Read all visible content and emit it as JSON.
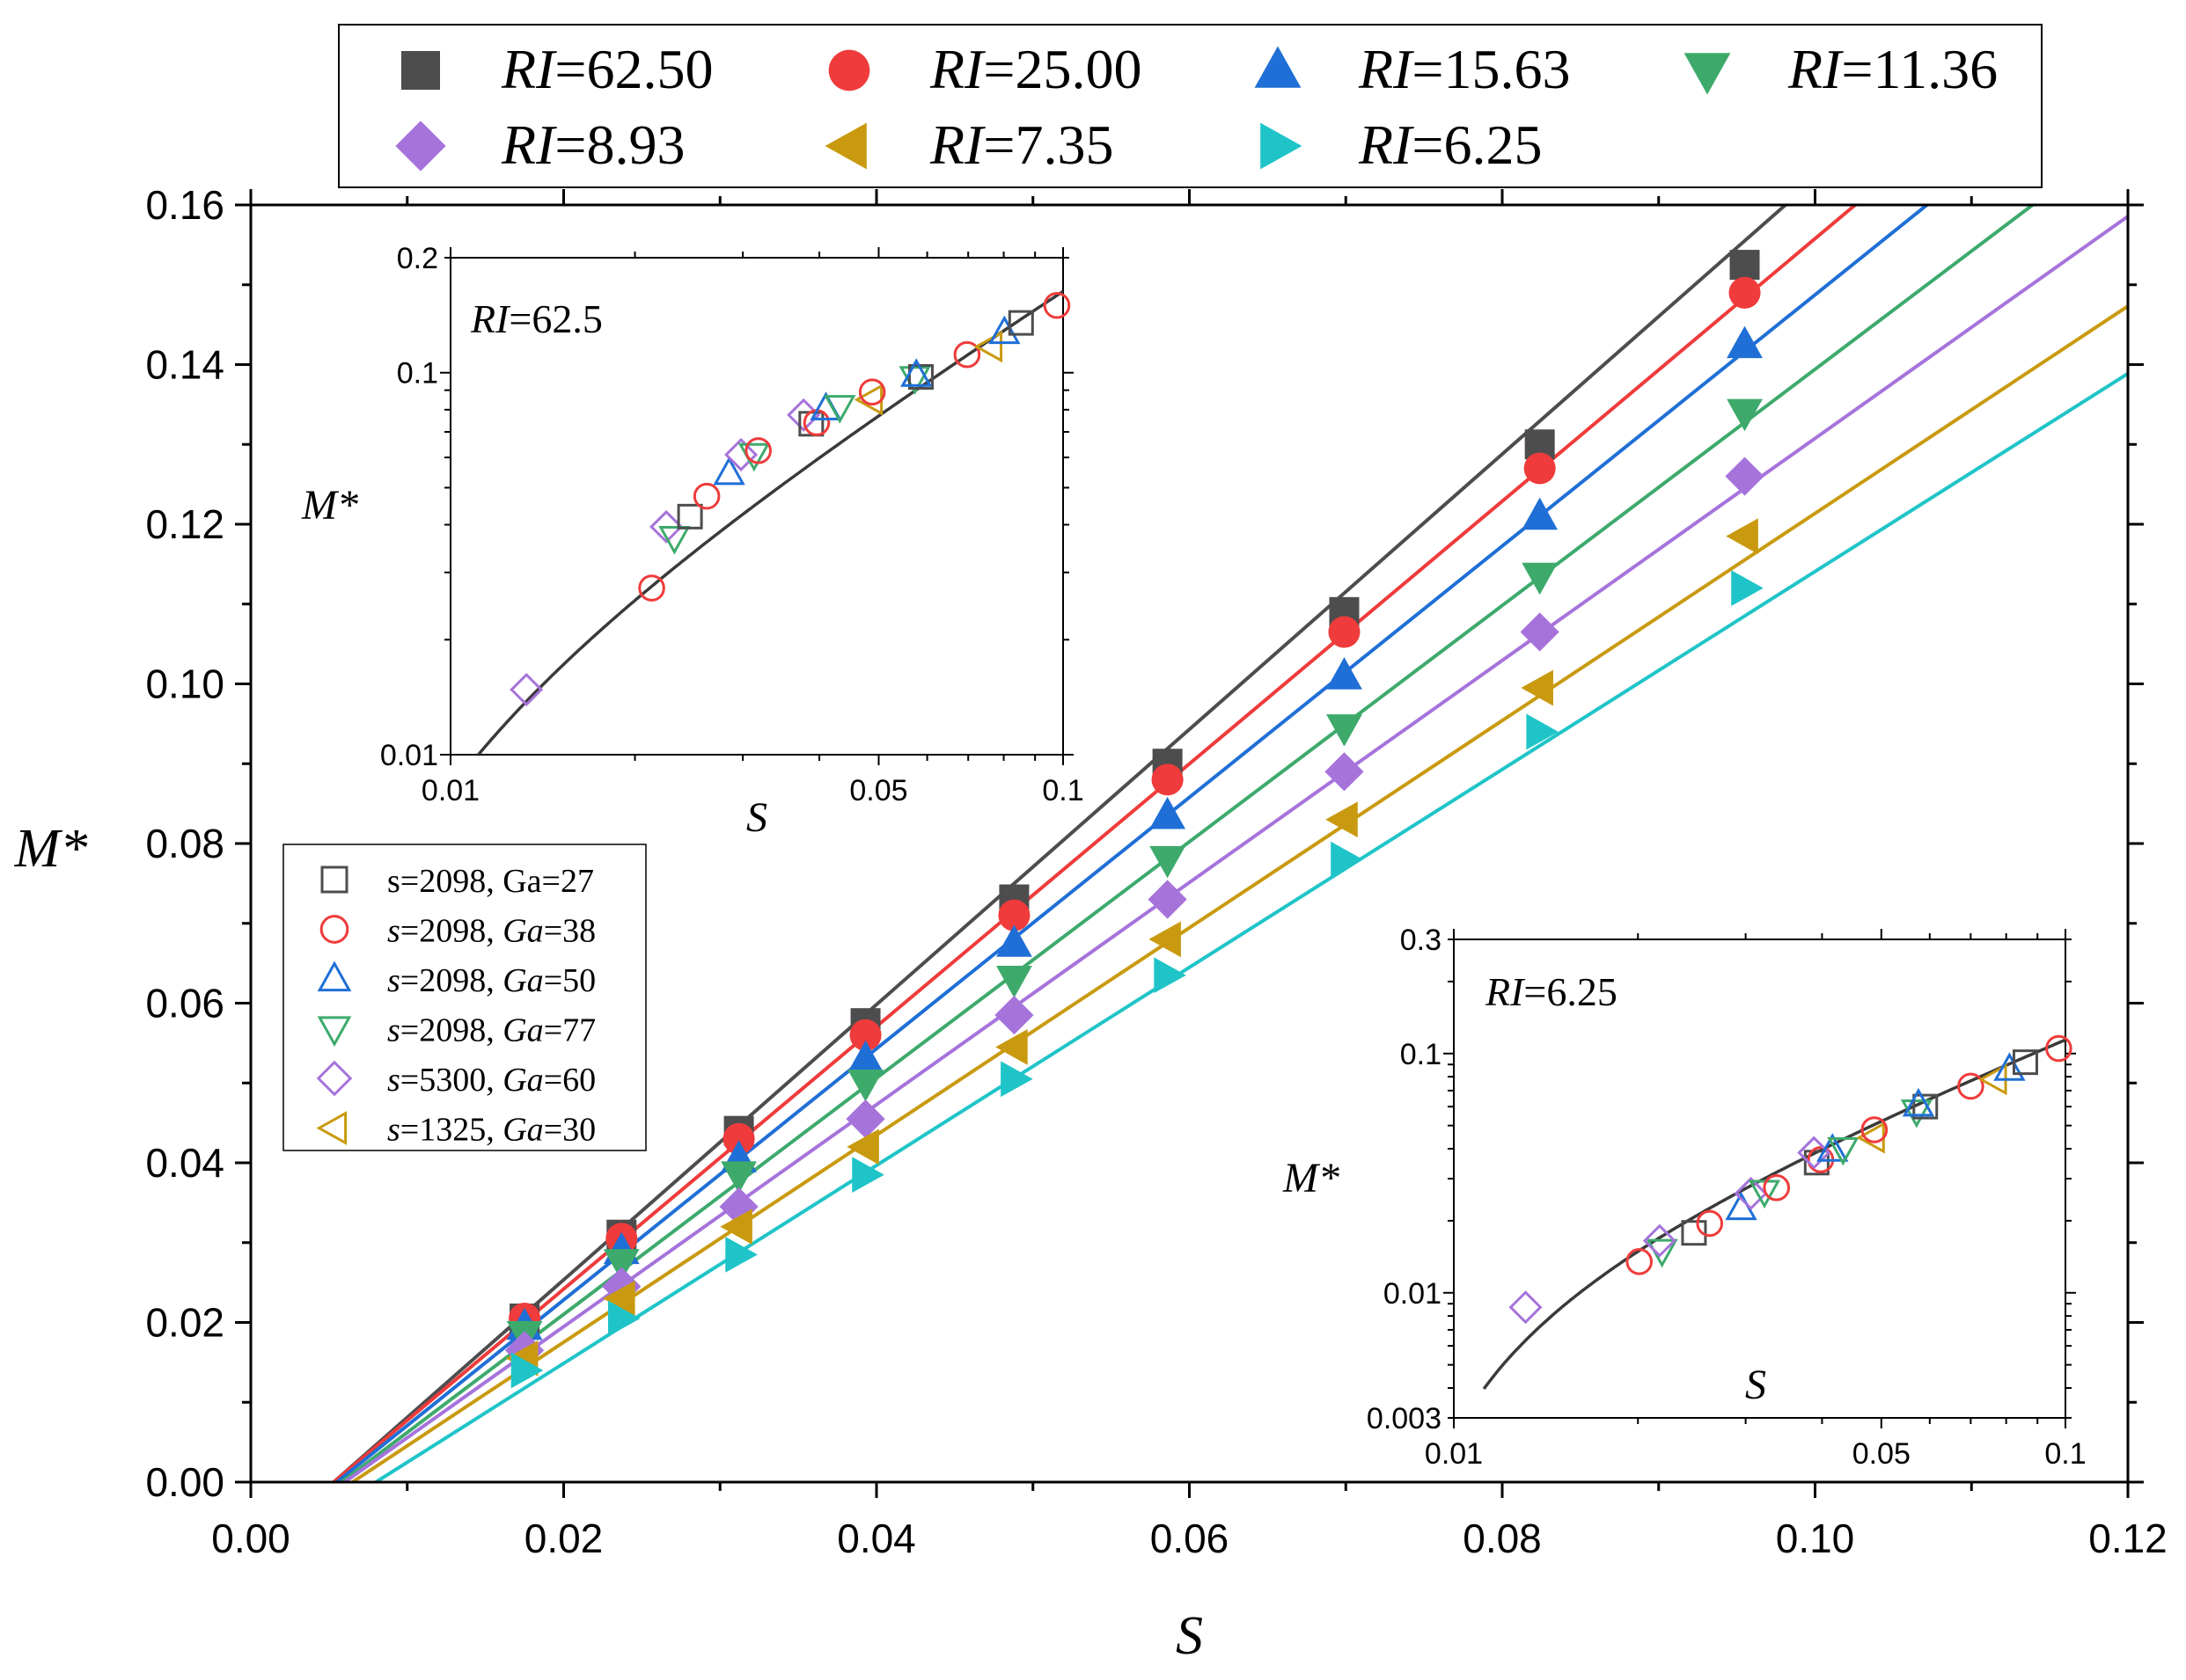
{
  "chart_data": {
    "type": "scatter",
    "x": [
      0.0175,
      0.0237,
      0.0312,
      0.0393,
      0.0488,
      0.0586,
      0.0699,
      0.0824,
      0.0955
    ],
    "xlabel": "S",
    "ylabel": "M*",
    "xlim": [
      0,
      0.12
    ],
    "ylim": [
      0,
      0.16
    ],
    "xticks": [
      "0.00",
      "0.02",
      "0.04",
      "0.06",
      "0.08",
      "0.10",
      "0.12"
    ],
    "yticks": [
      "0.00",
      "0.02",
      "0.04",
      "0.06",
      "0.08",
      "0.10",
      "0.12",
      "0.14",
      "0.16"
    ],
    "legend": "top-outside",
    "series": [
      {
        "name": "RI=62.50",
        "ri_value": "62.50",
        "color": "#4d4d4d",
        "marker": "square",
        "values": [
          0.0205,
          0.031,
          0.044,
          0.0575,
          0.073,
          0.09,
          0.109,
          0.13,
          0.1525
        ],
        "fit_slope": 1.724,
        "fit_x0": 0.0053
      },
      {
        "name": "RI=25.00",
        "ri_value": "25.00",
        "color": "#ef3b3b",
        "marker": "circle",
        "values": [
          0.0205,
          0.0305,
          0.043,
          0.056,
          0.071,
          0.088,
          0.1065,
          0.127,
          0.149
        ],
        "fit_slope": 1.645,
        "fit_x0": 0.0053
      },
      {
        "name": "RI=15.63",
        "ri_value": "15.63",
        "color": "#1f6fd6",
        "marker": "triangle-up",
        "values": [
          0.0195,
          0.029,
          0.0405,
          0.053,
          0.0675,
          0.0835,
          0.101,
          0.121,
          0.1425
        ],
        "fit_slope": 1.574,
        "fit_x0": 0.0055
      },
      {
        "name": "RI=11.36",
        "ri_value": "11.36",
        "color": "#3daa6c",
        "marker": "triangle-down",
        "values": [
          0.0185,
          0.0275,
          0.0385,
          0.05,
          0.063,
          0.078,
          0.0945,
          0.1135,
          0.134
        ],
        "fit_slope": 1.48,
        "fit_x0": 0.0058
      },
      {
        "name": "RI=8.93",
        "ri_value": "8.93",
        "color": "#a673db",
        "marker": "diamond",
        "values": [
          0.0165,
          0.0245,
          0.0345,
          0.0455,
          0.0585,
          0.073,
          0.089,
          0.1065,
          0.126
        ],
        "fit_slope": 1.391,
        "fit_x0": 0.006
      },
      {
        "name": "RI=7.35",
        "ri_value": "7.35",
        "color": "#c99a10",
        "marker": "triangle-left",
        "values": [
          0.0155,
          0.023,
          0.032,
          0.042,
          0.0545,
          0.068,
          0.083,
          0.0995,
          0.1185
        ],
        "fit_slope": 1.298,
        "fit_x0": 0.0065
      },
      {
        "name": "RI=6.25",
        "ri_value": "6.25",
        "color": "#1fc4c8",
        "marker": "triangle-right",
        "values": [
          0.014,
          0.0205,
          0.0285,
          0.0385,
          0.0505,
          0.0635,
          0.078,
          0.094,
          0.112
        ],
        "fit_slope": 1.24,
        "fit_x0": 0.008
      }
    ],
    "case_legend": [
      {
        "label": "s=2098, Ga=27",
        "s": "2098",
        "ga": "27",
        "color": "#4d4d4d",
        "marker": "square"
      },
      {
        "label": "s=2098, Ga=38",
        "s": "2098",
        "ga": "38",
        "color": "#ef3b3b",
        "marker": "circle"
      },
      {
        "label": "s=2098, Ga=50",
        "s": "2098",
        "ga": "50",
        "color": "#1f6fd6",
        "marker": "triangle-up"
      },
      {
        "label": "s=2098, Ga=77",
        "s": "2098",
        "ga": "77",
        "color": "#3daa6c",
        "marker": "triangle-down"
      },
      {
        "label": "s=5300, Ga=60",
        "s": "5300",
        "ga": "60",
        "color": "#a673db",
        "marker": "diamond"
      },
      {
        "label": "s=1325, Ga=30",
        "s": "1325",
        "ga": "30",
        "color": "#c99a10",
        "marker": "triangle-left"
      }
    ],
    "insets": [
      {
        "title": "RI=62.5",
        "ri_value": "62.5",
        "xlabel": "S",
        "ylabel": "M*",
        "xscale": "log",
        "yscale": "log",
        "xlim": [
          0.01,
          0.1
        ],
        "ylim": [
          0.01,
          0.2
        ],
        "xticks": [
          0.01,
          0.05,
          0.1
        ],
        "xtick_labels": [
          "0.01",
          "0.05",
          "0.1"
        ],
        "yticks": [
          0.01,
          0.1,
          0.2
        ],
        "ytick_labels": [
          "0.01",
          "0.1",
          "0.2"
        ],
        "fit": {
          "a": 1.724,
          "x0": 0.0053,
          "xmin": 0.0103,
          "xmax": 0.1
        },
        "points": [
          {
            "case": 4,
            "x": 0.0133,
            "y": 0.0148
          },
          {
            "case": 1,
            "x": 0.0213,
            "y": 0.0273
          },
          {
            "case": 4,
            "x": 0.0225,
            "y": 0.0395
          },
          {
            "case": 3,
            "x": 0.0232,
            "y": 0.037
          },
          {
            "case": 0,
            "x": 0.0246,
            "y": 0.042
          },
          {
            "case": 1,
            "x": 0.0262,
            "y": 0.0475
          },
          {
            "case": 2,
            "x": 0.0285,
            "y": 0.0545
          },
          {
            "case": 4,
            "x": 0.0298,
            "y": 0.061
          },
          {
            "case": 3,
            "x": 0.0313,
            "y": 0.061
          },
          {
            "case": 1,
            "x": 0.0318,
            "y": 0.0625
          },
          {
            "case": 4,
            "x": 0.0377,
            "y": 0.0775
          },
          {
            "case": 0,
            "x": 0.0388,
            "y": 0.0735
          },
          {
            "case": 1,
            "x": 0.0396,
            "y": 0.074
          },
          {
            "case": 2,
            "x": 0.041,
            "y": 0.0805
          },
          {
            "case": 3,
            "x": 0.0432,
            "y": 0.0815
          },
          {
            "case": 5,
            "x": 0.0486,
            "y": 0.085
          },
          {
            "case": 1,
            "x": 0.0488,
            "y": 0.089
          },
          {
            "case": 3,
            "x": 0.0573,
            "y": 0.097
          },
          {
            "case": 0,
            "x": 0.0586,
            "y": 0.0975
          },
          {
            "case": 2,
            "x": 0.0576,
            "y": 0.0985
          },
          {
            "case": 1,
            "x": 0.0697,
            "y": 0.1115
          },
          {
            "case": 5,
            "x": 0.0762,
            "y": 0.117
          },
          {
            "case": 2,
            "x": 0.0802,
            "y": 0.1275
          },
          {
            "case": 0,
            "x": 0.0854,
            "y": 0.135
          },
          {
            "case": 1,
            "x": 0.0977,
            "y": 0.15
          }
        ]
      },
      {
        "title": "RI=6.25",
        "ri_value": "6.25",
        "xlabel": "S",
        "ylabel": "M*",
        "xscale": "log",
        "yscale": "log",
        "xlim": [
          0.01,
          0.1
        ],
        "ylim": [
          0.003,
          0.3
        ],
        "xticks": [
          0.01,
          0.05,
          0.1
        ],
        "xtick_labels": [
          "0.01",
          "0.05",
          "0.1"
        ],
        "yticks": [
          0.003,
          0.01,
          0.1,
          0.3
        ],
        "ytick_labels": [
          "0.003",
          "0.01",
          "0.1",
          "0.3"
        ],
        "fit": {
          "a": 1.24,
          "x0": 0.008,
          "xmin": 0.0112,
          "xmax": 0.1
        },
        "points": [
          {
            "case": 4,
            "x": 0.0131,
            "y": 0.0087
          },
          {
            "case": 1,
            "x": 0.0201,
            "y": 0.0135
          },
          {
            "case": 3,
            "x": 0.0219,
            "y": 0.015
          },
          {
            "case": 4,
            "x": 0.0217,
            "y": 0.0165
          },
          {
            "case": 0,
            "x": 0.0247,
            "y": 0.0178
          },
          {
            "case": 1,
            "x": 0.0262,
            "y": 0.0195
          },
          {
            "case": 2,
            "x": 0.0295,
            "y": 0.0225
          },
          {
            "case": 4,
            "x": 0.0306,
            "y": 0.026
          },
          {
            "case": 3,
            "x": 0.0322,
            "y": 0.0265
          },
          {
            "case": 1,
            "x": 0.0337,
            "y": 0.0275
          },
          {
            "case": 0,
            "x": 0.0392,
            "y": 0.035
          },
          {
            "case": 1,
            "x": 0.0398,
            "y": 0.036
          },
          {
            "case": 4,
            "x": 0.0388,
            "y": 0.0385
          },
          {
            "case": 2,
            "x": 0.0416,
            "y": 0.0395
          },
          {
            "case": 3,
            "x": 0.0433,
            "y": 0.04
          },
          {
            "case": 5,
            "x": 0.0485,
            "y": 0.0445
          },
          {
            "case": 1,
            "x": 0.0487,
            "y": 0.048
          },
          {
            "case": 3,
            "x": 0.0571,
            "y": 0.0575
          },
          {
            "case": 0,
            "x": 0.059,
            "y": 0.06
          },
          {
            "case": 2,
            "x": 0.0575,
            "y": 0.061
          },
          {
            "case": 1,
            "x": 0.07,
            "y": 0.073
          },
          {
            "case": 5,
            "x": 0.0768,
            "y": 0.078
          },
          {
            "case": 2,
            "x": 0.081,
            "y": 0.086
          },
          {
            "case": 0,
            "x": 0.086,
            "y": 0.092
          },
          {
            "case": 1,
            "x": 0.0975,
            "y": 0.105
          }
        ]
      }
    ]
  }
}
